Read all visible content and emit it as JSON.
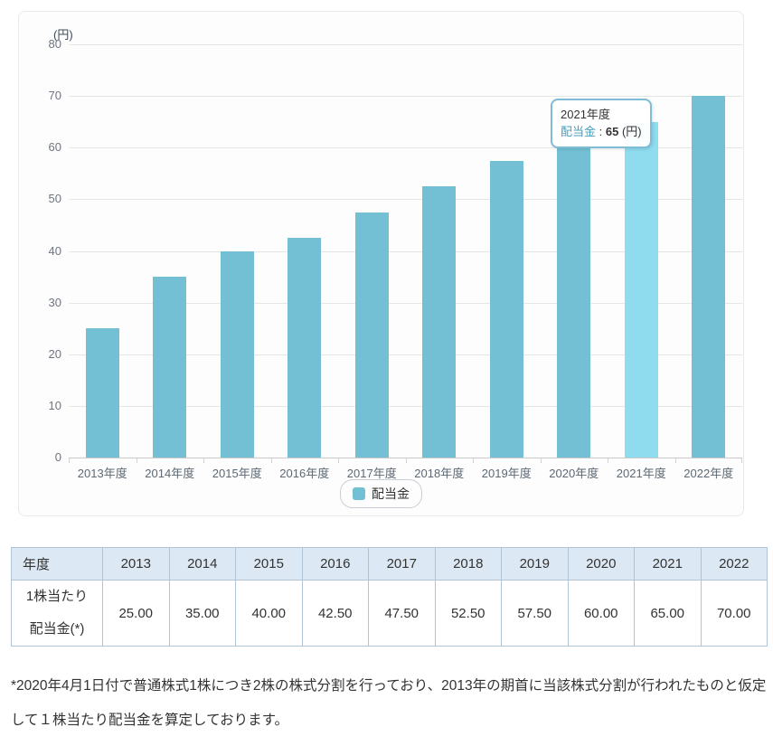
{
  "chart_data": {
    "type": "bar",
    "title": "",
    "unit_label": "(円)",
    "series_name": "配当金",
    "categories": [
      "2013年度",
      "2014年度",
      "2015年度",
      "2016年度",
      "2017年度",
      "2018年度",
      "2019年度",
      "2020年度",
      "2021年度",
      "2022年度"
    ],
    "values": [
      25,
      35,
      40,
      42.5,
      47.5,
      52.5,
      57.5,
      60,
      65,
      70
    ],
    "ylim": [
      0,
      80
    ],
    "yticks": [
      0,
      10,
      20,
      30,
      40,
      50,
      60,
      70,
      80
    ],
    "grid": true,
    "legend_position": "bottom-center",
    "highlighted_index": 8,
    "colors": {
      "bar": "#73bfd4",
      "bar_highlight": "#8edcee",
      "tooltip_border": "#7fbdd6",
      "series_text": "#42a0bf",
      "table_header_bg": "#dce8f3",
      "table_border": "#b0c4d5"
    }
  },
  "tooltip": {
    "title": "2021年度",
    "series": "配当金",
    "separator": " : ",
    "value": "65",
    "suffix": " (円)"
  },
  "legend": {
    "label": "配当金"
  },
  "table": {
    "header": [
      "年度",
      "2013",
      "2014",
      "2015",
      "2016",
      "2017",
      "2018",
      "2019",
      "2020",
      "2021",
      "2022"
    ],
    "row_label_line1": "1株当たり",
    "row_label_line2": "配当金(*)",
    "values": [
      "25.00",
      "35.00",
      "40.00",
      "42.50",
      "47.50",
      "52.50",
      "57.50",
      "60.00",
      "65.00",
      "70.00"
    ]
  },
  "footnote": {
    "line1": "*2020年4月1日付で普通株式1株につき2株の株式分割を行っており、2013年の期首に当該株式分割が行われたものと仮定",
    "line2": "して１株当たり配当金を算定しております。"
  }
}
